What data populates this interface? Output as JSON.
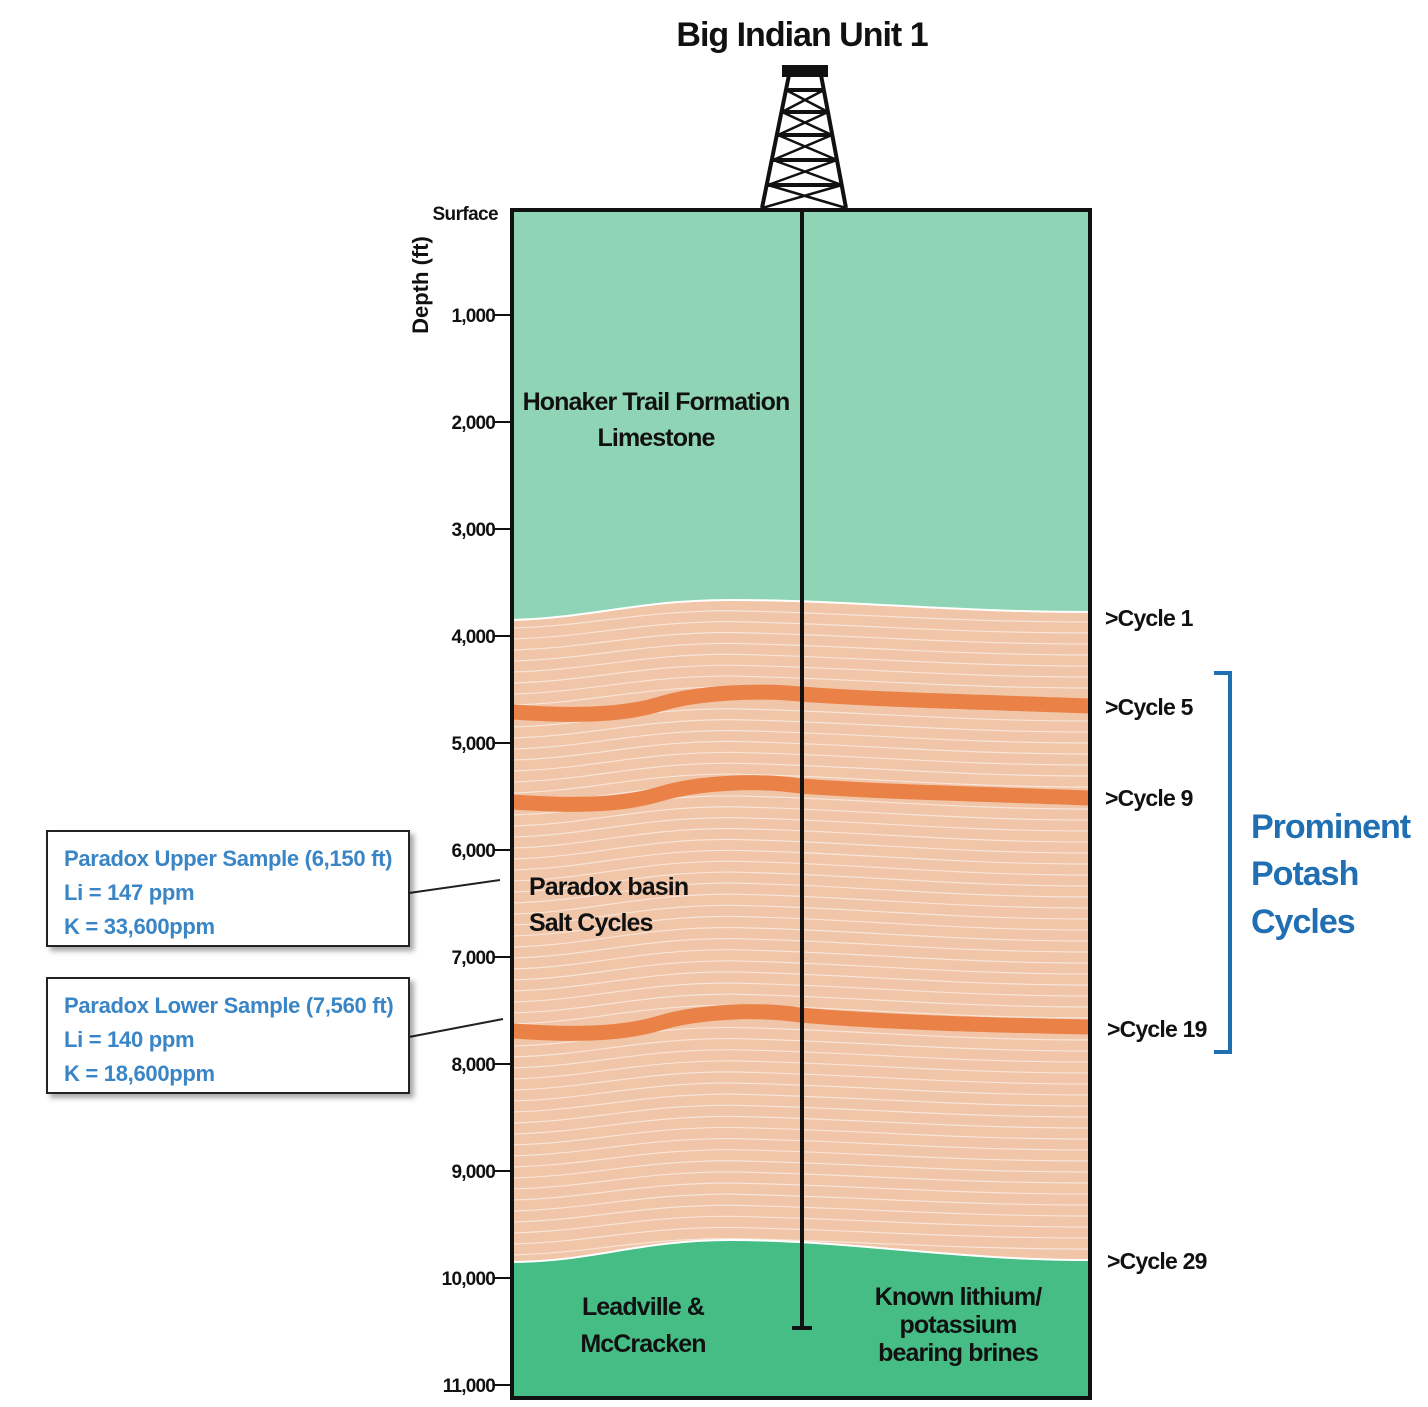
{
  "title": "Big Indian Unit 1",
  "axis": {
    "label": "Depth (ft)",
    "surface_label": "Surface",
    "ticks": [
      "1,000",
      "2,000",
      "3,000",
      "4,000",
      "5,000",
      "6,000",
      "7,000",
      "8,000",
      "9,000",
      "10,000",
      "11,000"
    ]
  },
  "layers": {
    "top": {
      "line1": "Honaker Trail Formation",
      "line2": "Limestone",
      "color": "#8fd5b5"
    },
    "middle": {
      "line1": "Paradox basin",
      "line2": "Salt Cycles",
      "color": "#f0c5a8"
    },
    "bottom_left": {
      "line1": "Leadville &",
      "line2": "McCracken"
    },
    "bottom_right": {
      "line1": "Known lithium/",
      "line2": "potassium",
      "line3": "bearing brines"
    },
    "bottom_color": "#45bd85",
    "potash_band_color": "#ea8248"
  },
  "cycles": [
    ">Cycle 1",
    ">Cycle 5",
    ">Cycle 9",
    ">Cycle 19",
    ">Cycle 29"
  ],
  "bracket": {
    "line1": "Prominent",
    "line2": "Potash",
    "line3": "Cycles",
    "color": "#1f6fb2"
  },
  "samples": [
    {
      "title": "Paradox Upper Sample (6,150 ft)",
      "li": "Li = 147 ppm",
      "k": "K = 33,600ppm"
    },
    {
      "title": "Paradox Lower Sample (7,560 ft)",
      "li": "Li = 140 ppm",
      "k": "K = 18,600ppm"
    }
  ]
}
